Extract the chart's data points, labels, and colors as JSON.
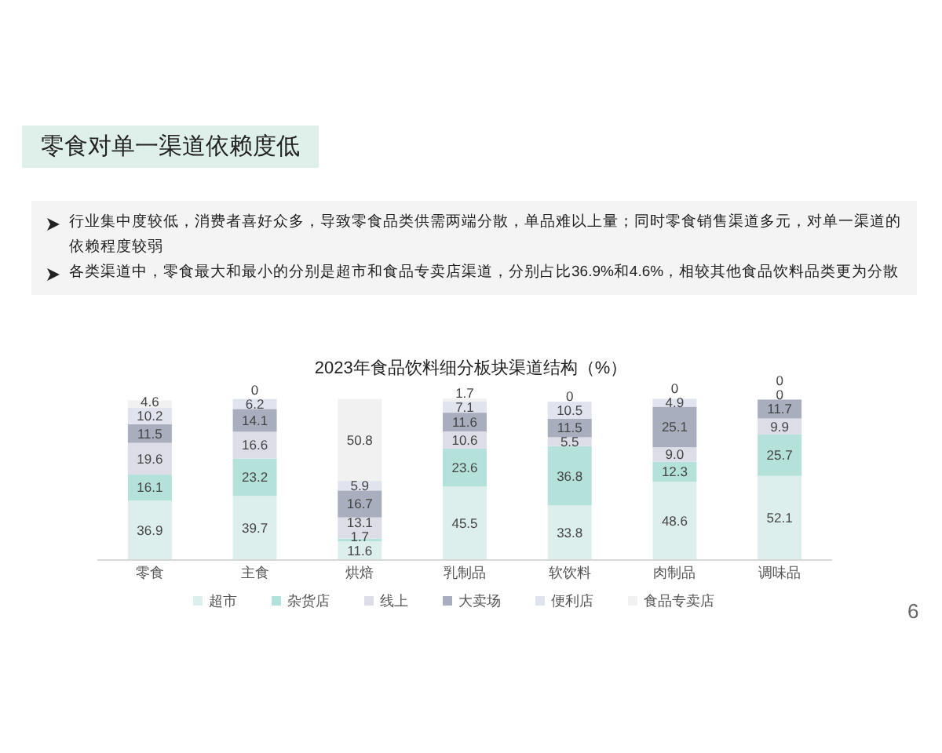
{
  "chart_data": {
    "type": "bar",
    "stacked": true,
    "title": "2023年食品饮料细分板块渠道结构（%）",
    "categories": [
      "零食",
      "主食",
      "烘焙",
      "乳制品",
      "软饮料",
      "肉制品",
      "调味品"
    ],
    "series": [
      {
        "name": "超市",
        "color": "#dcefed",
        "values": [
          36.9,
          39.7,
          11.6,
          45.5,
          33.8,
          48.6,
          52.1
        ],
        "value_labels": [
          "36.9",
          "39.7",
          "11.6",
          "45.5",
          "33.8",
          "48.6",
          "52.1"
        ]
      },
      {
        "name": "杂货店",
        "color": "#b4e2db",
        "values": [
          16.1,
          23.2,
          1.7,
          23.6,
          36.8,
          12.3,
          25.7
        ],
        "value_labels": [
          "16.1",
          "23.2",
          "1.7",
          "23.6",
          "36.8",
          "12.3",
          "25.7"
        ]
      },
      {
        "name": "线上",
        "color": "#dcdde6",
        "values": [
          19.6,
          16.6,
          13.1,
          10.6,
          5.5,
          9.0,
          9.9
        ],
        "value_labels": [
          "19.6",
          "16.6",
          "13.1",
          "10.6",
          "5.5",
          "9.0",
          "9.9"
        ]
      },
      {
        "name": "大卖场",
        "color": "#a9aebf",
        "values": [
          11.5,
          14.1,
          16.7,
          11.6,
          11.5,
          25.1,
          11.7
        ],
        "value_labels": [
          "11.5",
          "14.1",
          "16.7",
          "11.6",
          "11.5",
          "25.1",
          "11.7"
        ]
      },
      {
        "name": "便利店",
        "color": "#e1e3ef",
        "values": [
          10.2,
          6.2,
          5.9,
          7.1,
          10.5,
          4.9,
          0
        ],
        "value_labels": [
          "10.2",
          "6.2",
          "5.9",
          "7.1",
          "10.5",
          "4.9",
          "0"
        ]
      },
      {
        "name": "食品专卖店",
        "color": "#f1f1f1",
        "values": [
          4.6,
          0,
          50.8,
          1.7,
          0,
          0,
          0
        ],
        "value_labels": [
          "4.6",
          "0",
          "50.8",
          "1.7",
          "0",
          "0",
          "0"
        ]
      }
    ],
    "legend": "bottom",
    "annotations": [
      "零食对单一渠道依赖度低",
      "行业集中度较低，消费者喜好众多，导致零食品类供需两端分散，单品难以上量；同时零食销售渠道多元，对单一渠道的依赖程度较弱",
      "各类渠道中，零食最大和最小的分别是超市和食品专卖店渠道，分别占比36.9%和4.6%，相较其他食品饮料品类更为分散",
      "6"
    ]
  }
}
